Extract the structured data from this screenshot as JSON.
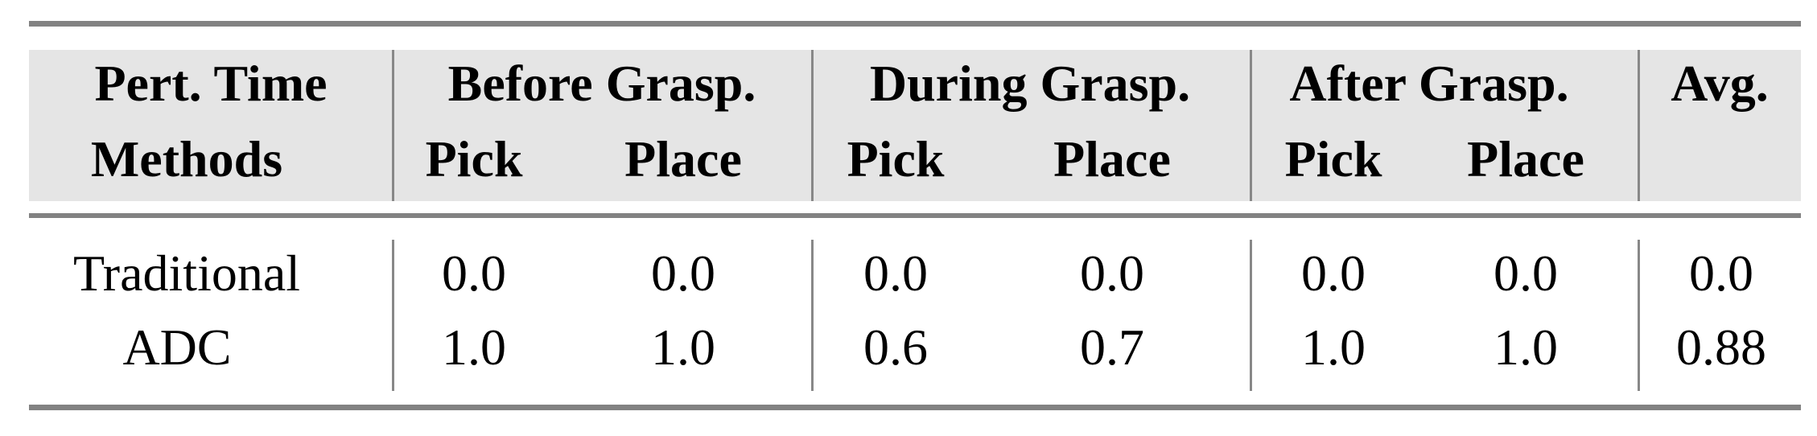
{
  "table": {
    "header_row1": {
      "corner": "Pert. Time",
      "groups": [
        "Before Grasp.",
        "During Grasp.",
        "After Grasp.",
        "Avg."
      ]
    },
    "header_row2": {
      "corner": "Methods",
      "subcolumns": [
        "Pick",
        "Place",
        "Pick",
        "Place",
        "Pick",
        "Place"
      ]
    },
    "rows": [
      {
        "method": "Traditional",
        "values": [
          "0.0",
          "0.0",
          "0.0",
          "0.0",
          "0.0",
          "0.0"
        ],
        "avg": "0.0"
      },
      {
        "method": "ADC",
        "values": [
          "1.0",
          "1.0",
          "0.6",
          "0.7",
          "1.0",
          "1.0"
        ],
        "avg": "0.88"
      }
    ]
  },
  "colors": {
    "header_bg": "#e5e5e5",
    "rule": "#828282"
  }
}
